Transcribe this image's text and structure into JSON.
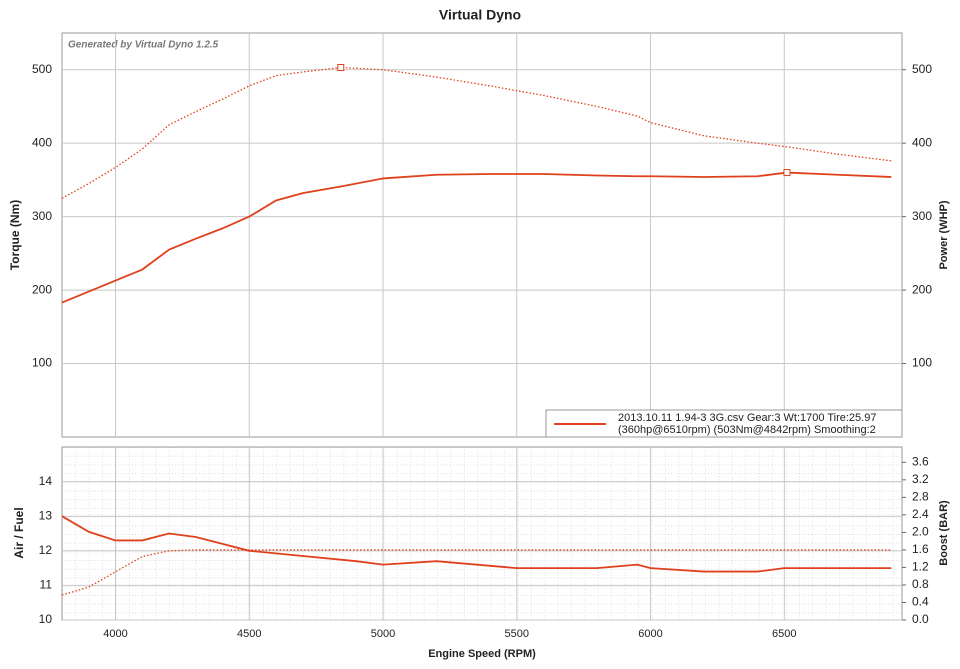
{
  "chart_data": [
    {
      "type": "line",
      "title": "Virtual Dyno",
      "subtitle": "Generated by Virtual Dyno 1.2.5",
      "ylabel": "Torque (Nm)",
      "y2label": "Power (WHP)",
      "x": [
        3800,
        3900,
        4000,
        4100,
        4200,
        4300,
        4400,
        4500,
        4600,
        4700,
        4842,
        5000,
        5200,
        5400,
        5600,
        5800,
        5950,
        6000,
        6200,
        6400,
        6510,
        6700,
        6900
      ],
      "xlim": [
        3800,
        6940
      ],
      "ylim": [
        0,
        550
      ],
      "yticks": [
        100,
        200,
        300,
        400,
        500
      ],
      "y2lim": [
        0,
        550
      ],
      "y2ticks": [
        100,
        200,
        300,
        400,
        500
      ],
      "grid": true,
      "series": [
        {
          "color": "#e0401c",
          "style": "dotted",
          "values": [
            325,
            345,
            367,
            392,
            425,
            443,
            460,
            478,
            492,
            497,
            503,
            500,
            490,
            478,
            465,
            450,
            437,
            428,
            410,
            400,
            395,
            385,
            376
          ]
        },
        {
          "color": "#e0401c",
          "style": "solid",
          "axis": "y2",
          "values": [
            183,
            198,
            213,
            228,
            255,
            270,
            284,
            300,
            322,
            332,
            341,
            352,
            357,
            358,
            358,
            356,
            355,
            355,
            354,
            355,
            360,
            357,
            354
          ]
        }
      ],
      "legend": {
        "corner": "lower right",
        "color": "#e0401c",
        "lines": [
          "2013.10.11 1.94-3 3G.csv Gear:3 Wt:1700 Tire:25.97",
          "(360hp@6510rpm) (503Nm@4842rpm) Smoothing:2"
        ]
      }
    },
    {
      "type": "line",
      "ylabel": "Air / Fuel",
      "y2label": "Boost (BAR)",
      "xlabel": "Engine Speed (RPM)",
      "x": [
        3800,
        3900,
        4000,
        4100,
        4200,
        4300,
        4400,
        4500,
        4700,
        4900,
        5000,
        5200,
        5500,
        5800,
        5950,
        6000,
        6200,
        6400,
        6500,
        6900
      ],
      "xlim": [
        3800,
        6940
      ],
      "xticks": [
        4000,
        4500,
        5000,
        5500,
        6000,
        6500
      ],
      "ylim": [
        10,
        15
      ],
      "yticks": [
        10,
        11,
        12,
        13,
        14
      ],
      "y2lim": [
        0,
        3.95
      ],
      "y2ticks": [
        {
          "value": 0,
          "label": "0.0"
        },
        0.4,
        0.8,
        1.2,
        1.6,
        {
          "value": 2,
          "label": "2.0"
        },
        2.4,
        2.8,
        3.2,
        3.6
      ],
      "grid": true,
      "series": [
        {
          "color": "#e0401c",
          "style": "solid",
          "values": [
            13.0,
            12.55,
            12.3,
            12.3,
            12.5,
            12.4,
            12.2,
            12.0,
            11.85,
            11.7,
            11.6,
            11.7,
            11.5,
            11.5,
            11.6,
            11.5,
            11.4,
            11.4,
            11.5,
            11.5
          ]
        },
        {
          "color": "#e0401c",
          "style": "dotted",
          "axis": "y2",
          "values": [
            0.57,
            0.75,
            1.1,
            1.45,
            1.58,
            1.6,
            1.6,
            1.6,
            1.6,
            1.6,
            1.6,
            1.6,
            1.6,
            1.6,
            1.6,
            1.6,
            1.6,
            1.6,
            1.6,
            1.6
          ]
        }
      ]
    }
  ]
}
